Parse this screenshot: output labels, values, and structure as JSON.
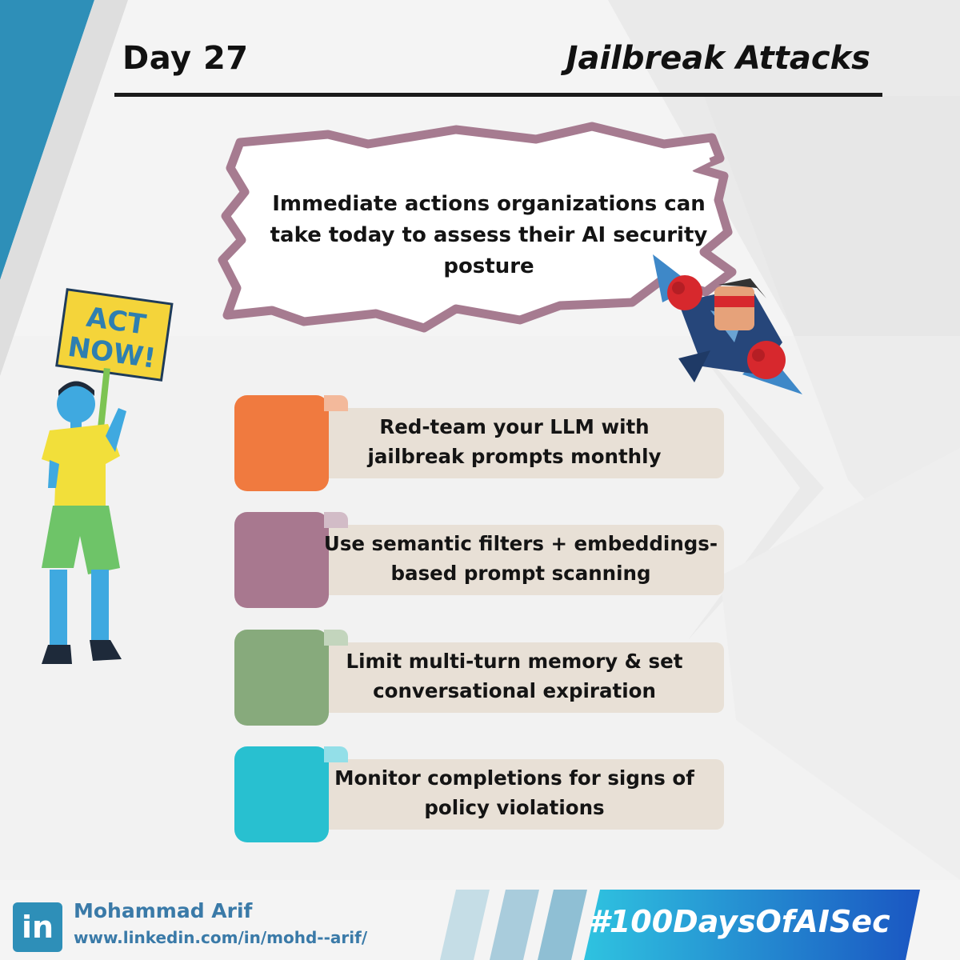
{
  "header": {
    "day": "Day 27",
    "topic": "Jailbreak Attacks"
  },
  "intro": {
    "text": "Immediate actions organizations can take today to assess their AI security posture"
  },
  "sign": {
    "line1": "ACT",
    "line2": "NOW!"
  },
  "actions": [
    {
      "text_line1": "Red-team your LLM with",
      "text_line2": "jailbreak prompts monthly",
      "color": "#f07a3f",
      "tab_color": "#f3b99b"
    },
    {
      "text_line1": "Use semantic filters + embeddings-",
      "text_line2": "based prompt scanning",
      "color": "#a8788f",
      "tab_color": "#d2bcc7"
    },
    {
      "text_line1": "Limit multi-turn memory & set",
      "text_line2": "conversational expiration",
      "color": "#87aa7c",
      "tab_color": "#c3d5bd"
    },
    {
      "text_line1": "Monitor completions for signs of",
      "text_line2": "policy violations",
      "color": "#28c0d0",
      "tab_color": "#93dfe8"
    }
  ],
  "footer": {
    "linkedin_icon": "in",
    "author": "Mohammad Arif",
    "url": "www.linkedin.com/in/mohd--arif/",
    "hashtag": "#100DaysOfAISec"
  },
  "colors": {
    "accent_blue": "#2e8fb8",
    "card_bg": "#e8e0d6",
    "frame_purple": "#a67b90",
    "hashtag_gradient_start": "#2fc3e0",
    "hashtag_gradient_end": "#1a56c2"
  },
  "icons": [
    "linkedin-icon",
    "protester-illustration",
    "superhero-illustration"
  ]
}
